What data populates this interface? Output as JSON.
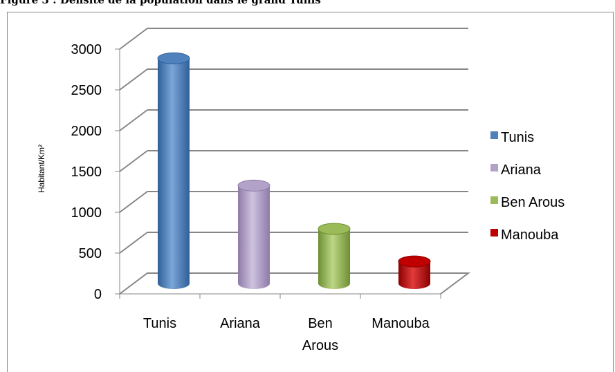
{
  "caption": {
    "text": "Figure 3 : Densité de la population dans le grand Tunis"
  },
  "chart_data": {
    "type": "bar",
    "title": "",
    "xlabel": "",
    "ylabel": "Habitant/Km²",
    "ylim": [
      0,
      3000
    ],
    "yticks": [
      "0",
      "500",
      "1000",
      "1500",
      "2000",
      "2500",
      "3000"
    ],
    "categories": [
      {
        "label": "Tunis",
        "lines": [
          "Tunis"
        ]
      },
      {
        "label": "Ariana",
        "lines": [
          "Ariana"
        ]
      },
      {
        "label": "Ben Arous",
        "lines": [
          "Ben",
          "Arous"
        ]
      },
      {
        "label": "Manouba",
        "lines": [
          "Manouba"
        ]
      }
    ],
    "values": [
      2760,
      1200,
      670,
      270
    ],
    "grid": true,
    "legend": {
      "placement": "right",
      "entries": [
        "Tunis",
        "Ariana",
        "Ben Arous",
        "Manouba"
      ]
    },
    "colors": {
      "series": [
        "#4f81bd",
        "#b3a2c7",
        "#9bbb59",
        "#c00000"
      ],
      "series_dark": [
        "#2f5f97",
        "#8e7aa8",
        "#6e8f33",
        "#8a0000"
      ],
      "series_light": [
        "#7aa6d9",
        "#cfc2df",
        "#bcd685",
        "#e23a3a"
      ],
      "grid": "#868686"
    }
  }
}
